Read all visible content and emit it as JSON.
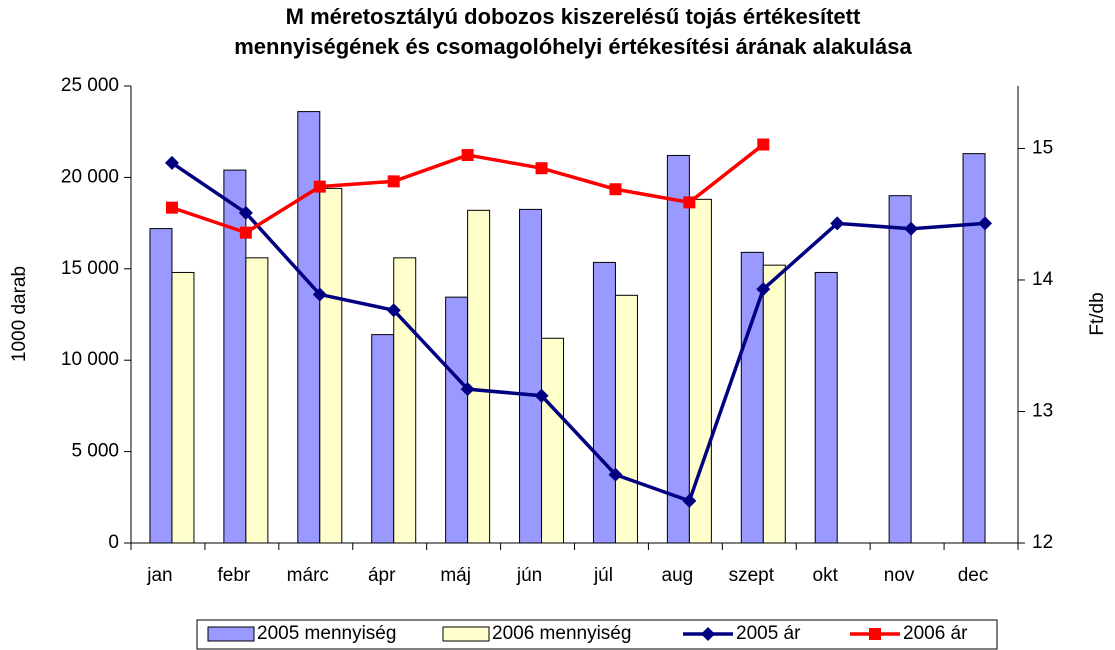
{
  "chart_data": {
    "type": "bar_line",
    "title": [
      "M méretosztályú dobozos kiszerelésű tojás értékesített",
      "mennyiségének és csomagolóhelyi értékesítési árának alakulása"
    ],
    "y_label": "1000 darab",
    "y2_label": "Ft/db",
    "categories": [
      "jan",
      "febr",
      "márc",
      "ápr",
      "máj",
      "jún",
      "júl",
      "aug",
      "szept",
      "okt",
      "nov",
      "dec"
    ],
    "series": [
      {
        "name": "2005 mennyiség",
        "type": "bar",
        "color": "#9999ff",
        "values": [
          17200,
          20400,
          23600,
          11400,
          13450,
          18250,
          15350,
          21200,
          15900,
          14800,
          19000,
          21300
        ]
      },
      {
        "name": "2006 mennyiség",
        "type": "bar",
        "color": "#ffffcc",
        "values": [
          14800,
          15600,
          19400,
          15600,
          18200,
          11200,
          13550,
          18800,
          15200,
          null,
          null,
          null
        ]
      },
      {
        "name": "2005 ár",
        "type": "line",
        "axis": "y2",
        "marker": "diamond",
        "color": "#000080",
        "values": [
          14.89,
          14.51,
          13.89,
          13.77,
          13.17,
          13.12,
          12.52,
          12.32,
          13.93,
          14.43,
          14.39,
          14.43
        ]
      },
      {
        "name": "2006 ár",
        "type": "line",
        "axis": "y2",
        "marker": "square",
        "color": "#ff0000",
        "values": [
          14.55,
          14.36,
          14.71,
          14.75,
          14.95,
          14.85,
          14.69,
          14.59,
          15.03,
          null,
          null,
          null
        ]
      }
    ],
    "ylim": [
      0,
      25000
    ],
    "yticks": [
      0,
      {
        "value": 5000,
        "label": "5 000"
      },
      {
        "value": 10000,
        "label": "10 000"
      },
      {
        "value": 15000,
        "label": "15 000"
      },
      {
        "value": 20000,
        "label": "20 000"
      },
      {
        "value": 25000,
        "label": "25 000"
      }
    ],
    "y2lim": [
      12,
      15.475
    ],
    "y2ticks": [
      12,
      13,
      14,
      15
    ]
  }
}
